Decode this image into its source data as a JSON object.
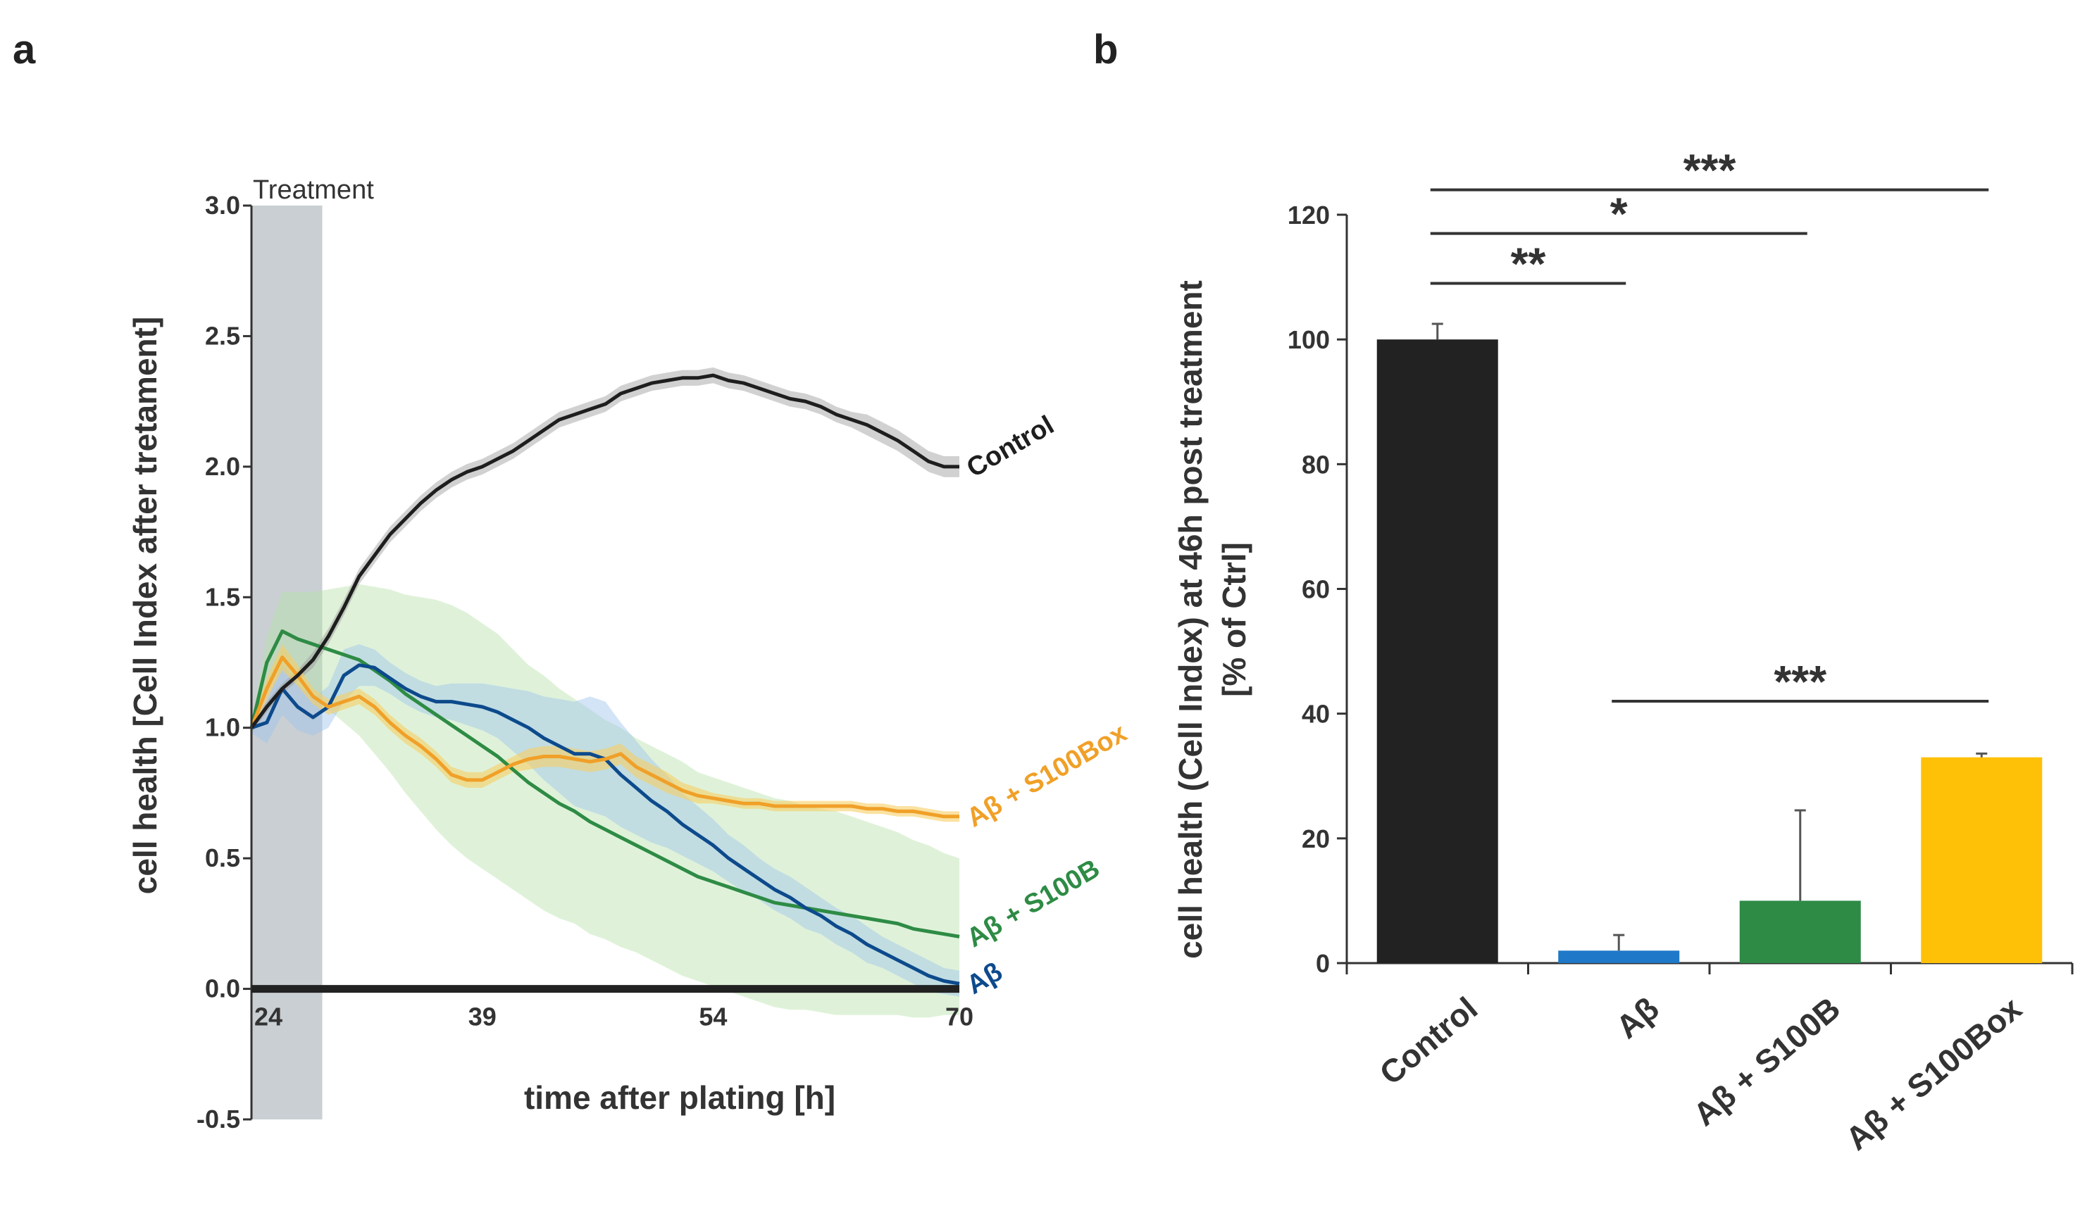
{
  "colors": {
    "control": "#1e1e1e",
    "abeta": "#0d4a8c",
    "abeta_bar": "#1f78c8",
    "s100b": "#2e8b45",
    "s100box": "#f0a028",
    "s100box_bar": "#ffc107",
    "treatment_band": "#c9cfd2",
    "axis": "#333333"
  },
  "chart_data": [
    {
      "panel": "a",
      "type": "line",
      "ylabel": "cell health [Cell Index after tretament]",
      "xlabel": "time after plating [h]",
      "xlim": [
        24,
        70
      ],
      "ylim": [
        -0.5,
        3.0
      ],
      "xticks": [
        "24",
        "39",
        "54",
        "70"
      ],
      "xtick_values": [
        24,
        39,
        54,
        70
      ],
      "yticks": [
        "3.0",
        "2.5",
        "2.0",
        "1.5",
        "1.0",
        "0.5",
        "0.0",
        "-0.5"
      ],
      "ytick_values": [
        3.0,
        2.5,
        2.0,
        1.5,
        1.0,
        0.5,
        0.0,
        -0.5
      ],
      "treatment": {
        "label": "Treatment",
        "start": 24,
        "end": 28.6
      },
      "x": [
        24,
        25,
        26,
        27,
        28,
        29,
        30,
        31,
        32,
        33,
        34,
        35,
        36,
        37,
        38,
        39,
        40,
        41,
        42,
        43,
        44,
        45,
        46,
        47,
        48,
        49,
        50,
        51,
        52,
        53,
        54,
        55,
        56,
        57,
        58,
        59,
        60,
        61,
        62,
        63,
        64,
        65,
        66,
        67,
        68,
        69,
        70
      ],
      "series": [
        {
          "name": "Control",
          "key": "control",
          "values": [
            1.0,
            1.08,
            1.15,
            1.2,
            1.26,
            1.35,
            1.46,
            1.58,
            1.66,
            1.74,
            1.8,
            1.86,
            1.91,
            1.95,
            1.98,
            2.0,
            2.03,
            2.06,
            2.1,
            2.14,
            2.18,
            2.2,
            2.22,
            2.24,
            2.28,
            2.3,
            2.32,
            2.33,
            2.34,
            2.34,
            2.35,
            2.33,
            2.32,
            2.3,
            2.28,
            2.26,
            2.25,
            2.23,
            2.2,
            2.18,
            2.16,
            2.13,
            2.1,
            2.06,
            2.02,
            2.0,
            2.0
          ],
          "sd": [
            0.02,
            0.02,
            0.02,
            0.02,
            0.03,
            0.03,
            0.03,
            0.03,
            0.03,
            0.03,
            0.03,
            0.03,
            0.03,
            0.03,
            0.03,
            0.03,
            0.03,
            0.03,
            0.03,
            0.03,
            0.03,
            0.03,
            0.03,
            0.03,
            0.03,
            0.03,
            0.03,
            0.03,
            0.03,
            0.03,
            0.03,
            0.03,
            0.03,
            0.03,
            0.03,
            0.03,
            0.03,
            0.03,
            0.03,
            0.03,
            0.04,
            0.04,
            0.04,
            0.04,
            0.04,
            0.04,
            0.04
          ]
        },
        {
          "name": "Aβ",
          "key": "abeta",
          "values": [
            1.0,
            1.02,
            1.15,
            1.08,
            1.04,
            1.08,
            1.2,
            1.24,
            1.23,
            1.19,
            1.15,
            1.12,
            1.1,
            1.1,
            1.09,
            1.08,
            1.06,
            1.03,
            1.0,
            0.96,
            0.93,
            0.9,
            0.9,
            0.88,
            0.82,
            0.77,
            0.72,
            0.68,
            0.63,
            0.59,
            0.55,
            0.5,
            0.46,
            0.42,
            0.38,
            0.35,
            0.31,
            0.28,
            0.24,
            0.21,
            0.17,
            0.14,
            0.11,
            0.08,
            0.05,
            0.03,
            0.02
          ],
          "sd": [
            0.02,
            0.08,
            0.1,
            0.09,
            0.07,
            0.08,
            0.1,
            0.08,
            0.07,
            0.06,
            0.06,
            0.06,
            0.06,
            0.07,
            0.08,
            0.09,
            0.1,
            0.12,
            0.14,
            0.16,
            0.18,
            0.2,
            0.22,
            0.22,
            0.2,
            0.18,
            0.16,
            0.14,
            0.12,
            0.11,
            0.1,
            0.09,
            0.09,
            0.08,
            0.08,
            0.08,
            0.08,
            0.07,
            0.07,
            0.07,
            0.07,
            0.06,
            0.06,
            0.06,
            0.06,
            0.05,
            0.05
          ]
        },
        {
          "name": "Aβ + S100B",
          "key": "s100b",
          "values": [
            1.0,
            1.25,
            1.37,
            1.34,
            1.32,
            1.3,
            1.28,
            1.26,
            1.22,
            1.18,
            1.13,
            1.09,
            1.05,
            1.01,
            0.97,
            0.93,
            0.89,
            0.84,
            0.79,
            0.75,
            0.71,
            0.68,
            0.64,
            0.61,
            0.58,
            0.55,
            0.52,
            0.49,
            0.46,
            0.43,
            0.41,
            0.39,
            0.37,
            0.35,
            0.33,
            0.32,
            0.31,
            0.3,
            0.29,
            0.28,
            0.27,
            0.26,
            0.25,
            0.23,
            0.22,
            0.21,
            0.2
          ],
          "sd": [
            0.02,
            0.1,
            0.15,
            0.18,
            0.2,
            0.23,
            0.26,
            0.29,
            0.32,
            0.35,
            0.38,
            0.41,
            0.44,
            0.46,
            0.47,
            0.47,
            0.47,
            0.46,
            0.45,
            0.45,
            0.44,
            0.43,
            0.43,
            0.42,
            0.42,
            0.41,
            0.41,
            0.41,
            0.41,
            0.4,
            0.4,
            0.4,
            0.4,
            0.4,
            0.4,
            0.4,
            0.39,
            0.39,
            0.39,
            0.38,
            0.37,
            0.36,
            0.35,
            0.34,
            0.33,
            0.31,
            0.3
          ]
        },
        {
          "name": "Aβ + S100Box",
          "key": "s100box",
          "values": [
            1.0,
            1.15,
            1.27,
            1.2,
            1.12,
            1.08,
            1.1,
            1.12,
            1.08,
            1.02,
            0.97,
            0.93,
            0.88,
            0.82,
            0.8,
            0.8,
            0.83,
            0.86,
            0.88,
            0.89,
            0.89,
            0.88,
            0.87,
            0.88,
            0.9,
            0.85,
            0.82,
            0.79,
            0.76,
            0.74,
            0.73,
            0.72,
            0.71,
            0.71,
            0.7,
            0.7,
            0.7,
            0.7,
            0.7,
            0.7,
            0.69,
            0.69,
            0.68,
            0.68,
            0.67,
            0.66,
            0.66
          ],
          "sd": [
            0.02,
            0.04,
            0.05,
            0.04,
            0.03,
            0.03,
            0.03,
            0.03,
            0.03,
            0.03,
            0.03,
            0.03,
            0.03,
            0.03,
            0.03,
            0.03,
            0.03,
            0.03,
            0.04,
            0.04,
            0.04,
            0.04,
            0.04,
            0.04,
            0.04,
            0.04,
            0.04,
            0.04,
            0.03,
            0.03,
            0.02,
            0.02,
            0.02,
            0.02,
            0.02,
            0.02,
            0.02,
            0.02,
            0.02,
            0.02,
            0.02,
            0.02,
            0.02,
            0.02,
            0.02,
            0.02,
            0.02
          ]
        }
      ]
    },
    {
      "panel": "b",
      "type": "bar",
      "ylabel": "cell health (Cell Index) at 46h post treatment",
      "ylabel2": "[% of Ctrl]",
      "ylim": [
        0,
        120
      ],
      "yticks": [
        "120",
        "100",
        "80",
        "60",
        "40",
        "20",
        "0"
      ],
      "ytick_values": [
        120,
        100,
        80,
        60,
        40,
        20,
        0
      ],
      "categories": [
        "Control",
        "Aβ",
        "Aβ + S100B",
        "Aβ + S100Box"
      ],
      "values": [
        100,
        2,
        10,
        33
      ],
      "errors": [
        2.5,
        2.5,
        14.5,
        0.6
      ],
      "bar_colors": [
        "#222222",
        "#1f78c8",
        "#2e8b45",
        "#ffc107"
      ],
      "significance": [
        {
          "from": 0,
          "to": 3,
          "label": "***",
          "y": 124
        },
        {
          "from": 0,
          "to": 2,
          "label": "*",
          "y": 117
        },
        {
          "from": 0,
          "to": 1,
          "label": "**",
          "y": 109
        },
        {
          "from": 1,
          "to": 3,
          "label": "***",
          "y": 42
        }
      ]
    }
  ]
}
